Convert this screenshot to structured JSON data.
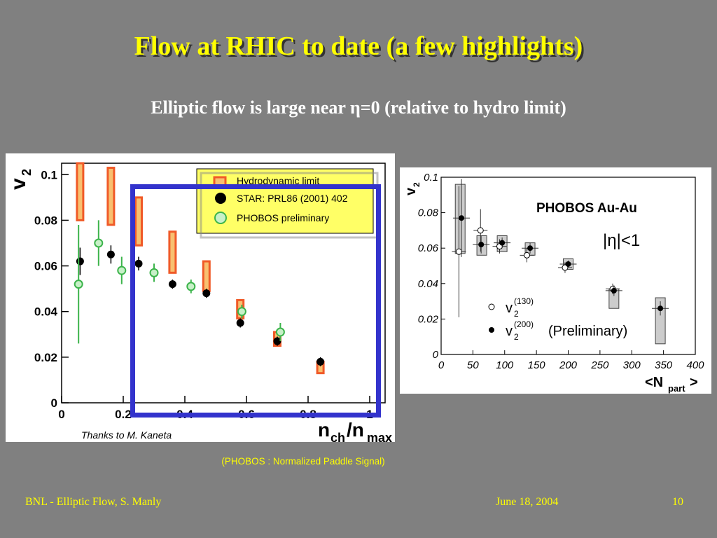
{
  "slide": {
    "title": "Flow at RHIC to date (a few highlights)",
    "subtitle_pre": "Elliptic flow is large near ",
    "subtitle_eta": "η",
    "subtitle_post": "=0 (relative to hydro limit)",
    "caption": "(PHOBOS : Normalized Paddle Signal)",
    "footer_left": "BNL - Elliptic Flow,  S. Manly",
    "footer_date": "June 18, 2004",
    "footer_page": "10"
  },
  "colors": {
    "title": "#ffff00",
    "hydro": "#f05a28",
    "star": "#000000",
    "phobos": "#3cb44b",
    "highlight": "#3333cc",
    "legend_bg": "#ffff66",
    "grey_box": "#cccccc"
  },
  "chart_data": [
    {
      "type": "scatter",
      "ylabel_main": "v",
      "ylabel_sub": "2",
      "xlabel_main": "n",
      "xlabel_sub1": "ch",
      "xlabel_slash": "/n",
      "xlabel_sub2": "max",
      "xlim": [
        0,
        1.05
      ],
      "ylim": [
        0,
        0.105
      ],
      "xticks": [
        {
          "v": 0,
          "label": "0"
        },
        {
          "v": 0.2,
          "label": "0.2"
        },
        {
          "v": 0.4,
          "label": "0.4"
        },
        {
          "v": 0.6,
          "label": "0.6"
        },
        {
          "v": 0.8,
          "label": "0.8"
        },
        {
          "v": 1,
          "label": "1"
        }
      ],
      "yticks": [
        {
          "v": 0,
          "label": "0"
        },
        {
          "v": 0.02,
          "label": "0.02"
        },
        {
          "v": 0.04,
          "label": "0.04"
        },
        {
          "v": 0.06,
          "label": "0.06"
        },
        {
          "v": 0.08,
          "label": "0.08"
        },
        {
          "v": 0.1,
          "label": "0.1"
        }
      ],
      "credit": "Thanks to M. Kaneta",
      "legend": [
        {
          "name": "Hydrodynamic limit",
          "marker": "bar"
        },
        {
          "name": "STAR: PRL86 (2001) 402",
          "marker": "filled"
        },
        {
          "name": "PHOBOS preliminary",
          "marker": "open"
        }
      ],
      "hydro_limit": [
        {
          "x": 0.06,
          "ylo": 0.08,
          "yhi": 0.105
        },
        {
          "x": 0.16,
          "ylo": 0.078,
          "yhi": 0.103
        },
        {
          "x": 0.25,
          "ylo": 0.069,
          "yhi": 0.09
        },
        {
          "x": 0.36,
          "ylo": 0.057,
          "yhi": 0.075
        },
        {
          "x": 0.47,
          "ylo": 0.049,
          "yhi": 0.062
        },
        {
          "x": 0.58,
          "ylo": 0.037,
          "yhi": 0.045
        },
        {
          "x": 0.7,
          "ylo": 0.025,
          "yhi": 0.031
        },
        {
          "x": 0.84,
          "ylo": 0.013,
          "yhi": 0.018
        }
      ],
      "star": [
        {
          "x": 0.06,
          "y": 0.062,
          "err": 0.006
        },
        {
          "x": 0.16,
          "y": 0.065,
          "err": 0.004
        },
        {
          "x": 0.25,
          "y": 0.061,
          "err": 0.003
        },
        {
          "x": 0.36,
          "y": 0.052,
          "err": 0.002
        },
        {
          "x": 0.47,
          "y": 0.048,
          "err": 0.002
        },
        {
          "x": 0.58,
          "y": 0.035,
          "err": 0.002
        },
        {
          "x": 0.7,
          "y": 0.027,
          "err": 0.002
        },
        {
          "x": 0.84,
          "y": 0.018,
          "err": 0.002
        }
      ],
      "phobos": [
        {
          "x": 0.055,
          "y": 0.052,
          "err": 0.026
        },
        {
          "x": 0.12,
          "y": 0.07,
          "err": 0.01
        },
        {
          "x": 0.195,
          "y": 0.058,
          "err": 0.006
        },
        {
          "x": 0.3,
          "y": 0.057,
          "err": 0.004
        },
        {
          "x": 0.42,
          "y": 0.051,
          "err": 0.003
        },
        {
          "x": 0.585,
          "y": 0.04,
          "err": 0.003
        },
        {
          "x": 0.71,
          "y": 0.031,
          "err": 0.004
        }
      ]
    },
    {
      "type": "scatter",
      "title": "PHOBOS Au-Au",
      "ylabel_main": "v",
      "ylabel_sub": "2",
      "xlabel_main": "<N",
      "xlabel_sub": "part",
      "xlabel_end": ">",
      "eta_label": "|η|<1",
      "xlim": [
        0,
        400
      ],
      "ylim": [
        0,
        0.1
      ],
      "xticks": [
        {
          "v": 0,
          "label": "0"
        },
        {
          "v": 50,
          "label": "50"
        },
        {
          "v": 100,
          "label": "100"
        },
        {
          "v": 150,
          "label": "150"
        },
        {
          "v": 200,
          "label": "200"
        },
        {
          "v": 250,
          "label": "250"
        },
        {
          "v": 300,
          "label": "300"
        },
        {
          "v": 350,
          "label": "350"
        },
        {
          "v": 400,
          "label": "400"
        }
      ],
      "yticks": [
        {
          "v": 0,
          "label": "0"
        },
        {
          "v": 0.02,
          "label": "0.02"
        },
        {
          "v": 0.04,
          "label": "0.04"
        },
        {
          "v": 0.06,
          "label": "0.06"
        },
        {
          "v": 0.08,
          "label": "0.08"
        },
        {
          "v": 0.1,
          "label": "0.1"
        }
      ],
      "legend": [
        {
          "name": "v",
          "sup": "(130)",
          "sub": "2",
          "marker": "open"
        },
        {
          "name": "v",
          "sup": "(200)",
          "sub": "2",
          "marker": "filled",
          "note": "(Preliminary)"
        }
      ],
      "v2_130": [
        {
          "x": 28,
          "y": 0.058,
          "err": 0.037
        },
        {
          "x": 62,
          "y": 0.07,
          "err": 0.012
        },
        {
          "x": 92,
          "y": 0.061,
          "err": 0.004
        },
        {
          "x": 135,
          "y": 0.056,
          "err": 0.004
        },
        {
          "x": 195,
          "y": 0.049,
          "err": 0.003
        },
        {
          "x": 270,
          "y": 0.037,
          "err": 0.003
        }
      ],
      "v2_200": [
        {
          "x": 32,
          "y": 0.077,
          "err": 0.022
        },
        {
          "x": 63,
          "y": 0.062,
          "err": 0.005
        },
        {
          "x": 96,
          "y": 0.063,
          "err": 0.003
        },
        {
          "x": 140,
          "y": 0.06,
          "err": 0.003
        },
        {
          "x": 200,
          "y": 0.051,
          "err": 0.002
        },
        {
          "x": 272,
          "y": 0.036,
          "err": 0.003
        },
        {
          "x": 345,
          "y": 0.026,
          "err": 0.004
        }
      ],
      "syst_boxes": [
        {
          "x": 30,
          "ylo": 0.057,
          "yhi": 0.096
        },
        {
          "x": 64,
          "ylo": 0.056,
          "yhi": 0.067
        },
        {
          "x": 96,
          "ylo": 0.058,
          "yhi": 0.067
        },
        {
          "x": 140,
          "ylo": 0.056,
          "yhi": 0.063
        },
        {
          "x": 200,
          "ylo": 0.048,
          "yhi": 0.054
        },
        {
          "x": 272,
          "ylo": 0.026,
          "yhi": 0.037
        },
        {
          "x": 345,
          "ylo": 0.006,
          "yhi": 0.032
        }
      ]
    }
  ]
}
